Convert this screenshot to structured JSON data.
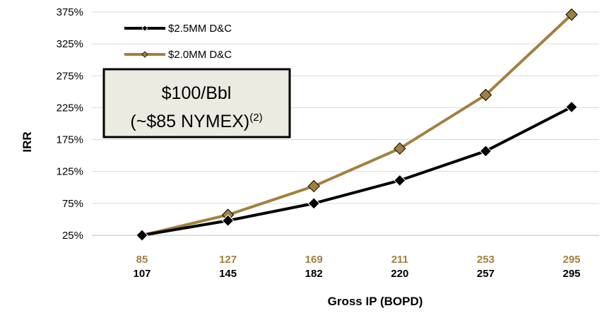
{
  "chart_data": {
    "type": "line",
    "title": "",
    "xlabel": "Gross IP (BOPD)",
    "ylabel": "IRR",
    "y_tick_labels": [
      "25%",
      "75%",
      "125%",
      "175%",
      "225%",
      "275%",
      "325%",
      "375%"
    ],
    "ylim": [
      25,
      375
    ],
    "grid": true,
    "legend_position": "top-left",
    "categories": [
      "1",
      "2",
      "3",
      "4",
      "5",
      "6"
    ],
    "x_labels_2MM": [
      "85",
      "127",
      "169",
      "211",
      "253",
      "295"
    ],
    "x_labels_25MM": [
      "107",
      "145",
      "182",
      "220",
      "257",
      "295"
    ],
    "series": [
      {
        "name": "$2.5MM D&C",
        "color": "#000000",
        "values": [
          25,
          48,
          75,
          111,
          157,
          226
        ]
      },
      {
        "name": "$2.0MM D&C",
        "color": "#a3803f",
        "values": [
          25,
          57,
          102,
          161,
          245,
          371
        ]
      }
    ],
    "annotation": {
      "line1": "$100/Bbl",
      "line2": "(~$85 NYMEX)",
      "superscript": "(2)"
    },
    "colors": {
      "gold": "#a3803f",
      "black": "#000000",
      "box_fill": "#ecebe1",
      "grid": "#d9d9d9"
    }
  }
}
